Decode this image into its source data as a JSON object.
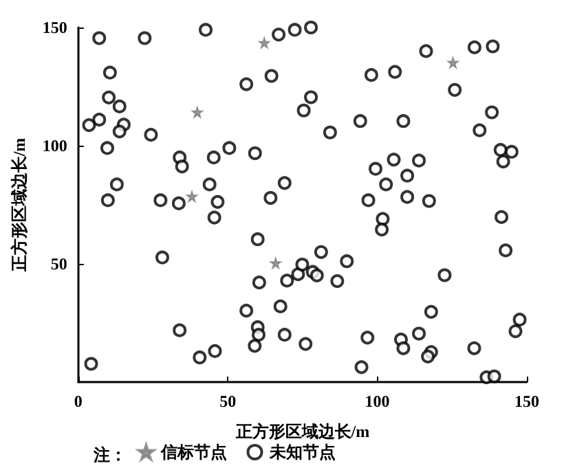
{
  "chart_data": {
    "type": "scatter",
    "xlabel": "正方形区域边长/m",
    "ylabel": "正方形区域边长/m",
    "legend_title": "注：",
    "xlim": [
      0,
      150
    ],
    "ylim": [
      0,
      150
    ],
    "xticks": [
      0,
      50,
      100,
      150
    ],
    "yticks": [
      50,
      100,
      150
    ],
    "grid": false,
    "legend": "bottom",
    "series": [
      {
        "name": "信标节点",
        "color": "#808080",
        "marker": "star",
        "x": [
          62.2,
          39.8,
          38,
          66,
          125.3
        ],
        "values": [
          143.5,
          114.1,
          78.5,
          50.3,
          135.1
        ]
      },
      {
        "name": "未知节点",
        "color": "#000000",
        "marker": "circle",
        "x": [
          7,
          22.2,
          42.6,
          67,
          72.4,
          10.6,
          64.6,
          56.2,
          10.2,
          13.8,
          7,
          3.6,
          15.2,
          13.8,
          24.3,
          9.7,
          50.5,
          59.1,
          33.9,
          34.7,
          45.3,
          12.9,
          43.9,
          69,
          9.9,
          27.5,
          33.6,
          46.6,
          64.3,
          45.5,
          60,
          28.1,
          73.5,
          69.8,
          60.5,
          56.2,
          67.6,
          60,
          60.3,
          69,
          59,
          33.9,
          45.7,
          40.6,
          4.3,
          97,
          110,
          117.3,
          141.5,
          101.8,
          101.5,
          142.9,
          81.2,
          74.9,
          89.8,
          78.4,
          79.8,
          86.6,
          122.5,
          118,
          147.6,
          146.2,
          76,
          96.7,
          107.9,
          108.7,
          113.9,
          118,
          116.9,
          132.4,
          94.7,
          136.5,
          139.1,
          77.8,
          116.3,
          132.5,
          138.6,
          125.9,
          98,
          105.9,
          77.8,
          75.4,
          94.3,
          108.7,
          84.2,
          138.3,
          134.2,
          141.2,
          144.9,
          142.1,
          105.5,
          113.9,
          99.4,
          110,
          102.9
        ],
        "values": [
          145.5,
          145.5,
          149,
          147,
          149,
          130.9,
          129.5,
          126,
          120.4,
          116.6,
          111,
          108.7,
          108.9,
          106,
          104.6,
          99,
          99,
          96.8,
          95,
          91.2,
          95,
          83.6,
          83.6,
          84.2,
          76.9,
          76.9,
          75.6,
          76.2,
          77.9,
          69.6,
          60.4,
          52.7,
          45.6,
          42.9,
          42.1,
          30.2,
          32,
          23.2,
          20,
          20,
          15.3,
          21.9,
          13.1,
          10.4,
          7.7,
          76.9,
          78.3,
          76.6,
          69.8,
          69,
          64.5,
          55.7,
          55,
          49.7,
          51.1,
          46.6,
          45.1,
          42.7,
          45.2,
          29.7,
          26.4,
          21.5,
          16.1,
          18.8,
          18,
          14.3,
          20.5,
          12.7,
          10.8,
          14.3,
          6.3,
          2,
          2.4,
          150,
          140,
          141.6,
          142,
          123.6,
          129.9,
          131.2,
          120.5,
          114.9,
          110.4,
          110.4,
          105.6,
          114.1,
          106.5,
          98.2,
          97.4,
          93.3,
          94.1,
          93.7,
          90.2,
          87.3,
          83.6
        ]
      }
    ]
  }
}
